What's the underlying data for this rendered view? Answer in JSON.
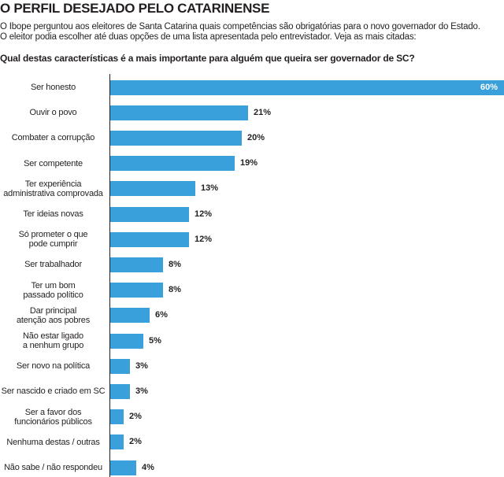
{
  "title": "O PERFIL DESEJADO PELO CATARINENSE",
  "subtitle_1": "O Ibope perguntou aos eleitores de Santa Catarina quais competências são obrigatórias para o novo governador do Estado.",
  "subtitle_2": "O eleitor podia escolher até duas opções de uma lista apresentada pelo entrevistador. Veja as mais citadas:",
  "question": "Qual destas características é a mais importante para alguém que queira ser governador de SC?",
  "colors": {
    "bar": "#3aa0db",
    "text": "#231f20"
  },
  "chart_data": {
    "type": "bar",
    "orientation": "horizontal",
    "categories": [
      "Ser honesto",
      "Ouvir o povo",
      "Combater a corrupção",
      "Ser competente",
      "Ter experiência administrativa comprovada",
      "Ter ideias novas",
      "Só prometer o que pode cumprir",
      "Ser trabalhador",
      "Ter um bom passado político",
      "Dar principal atenção aos pobres",
      "Não estar ligado a nenhum grupo",
      "Ser novo na política",
      "Ser nascido e criado em SC",
      "Ser a favor dos funcionários públicos",
      "Nenhuma destas / outras",
      "Não sabe / não respondeu"
    ],
    "values": [
      60,
      21,
      20,
      19,
      13,
      12,
      12,
      8,
      8,
      6,
      5,
      3,
      3,
      2,
      2,
      4
    ],
    "value_labels": [
      "60%",
      "21%",
      "20%",
      "19%",
      "13%",
      "12%",
      "12%",
      "8%",
      "8%",
      "6%",
      "5%",
      "3%",
      "3%",
      "2%",
      "2%",
      "4%"
    ],
    "category_lines": [
      [
        "Ser honesto"
      ],
      [
        "Ouvir o povo"
      ],
      [
        "Combater a corrupção"
      ],
      [
        "Ser competente"
      ],
      [
        "Ter experiência",
        "administrativa comprovada"
      ],
      [
        "Ter ideias novas"
      ],
      [
        "Só prometer o que",
        "pode cumprir"
      ],
      [
        "Ser trabalhador"
      ],
      [
        "Ter um bom",
        "passado político"
      ],
      [
        "Dar principal",
        "atenção aos pobres"
      ],
      [
        "Não estar ligado",
        "a nenhum grupo"
      ],
      [
        "Ser novo na política"
      ],
      [
        "Ser nascido e criado em SC"
      ],
      [
        "Ser a favor dos",
        "funcionários públicos"
      ],
      [
        "Nenhuma destas / outras"
      ],
      [
        "Não sabe / não respondeu"
      ]
    ],
    "xlim": [
      0,
      60
    ],
    "grid": false,
    "legend": "none"
  }
}
